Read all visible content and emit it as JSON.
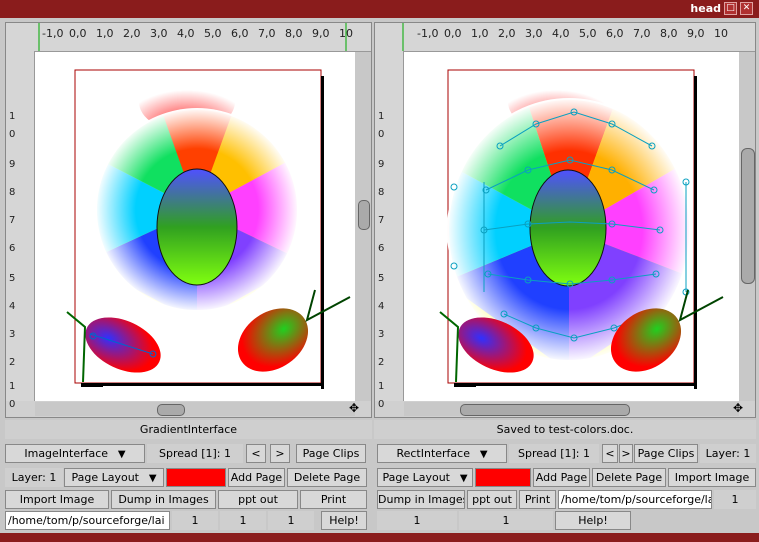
{
  "window": {
    "title": "head"
  },
  "left": {
    "ruler_top_labels": [
      "-1,0",
      "0,0",
      "1,0",
      "2,0",
      "3,0",
      "4,0",
      "5,0",
      "6,0",
      "7,0",
      "8,0",
      "9,0",
      "10"
    ],
    "ruler_left_labels": [
      "1",
      "0",
      "9",
      "8",
      "7",
      "6",
      "5",
      "4",
      "3",
      "2",
      "1",
      "0"
    ],
    "status": "GradientInterface",
    "interface_select": "ImageInterface",
    "spread": "Spread [1]: 1",
    "prev": "<",
    "next": ">",
    "page_clips": "Page Clips",
    "layer": "Layer: 1",
    "page_layout": "Page Layout",
    "add_page": "Add Page",
    "delete_page": "Delete Page",
    "import_image": "Import Image",
    "dump_images": "Dump in Images",
    "ppt_out": "ppt out",
    "print": "Print",
    "path": "/home/tom/p/sourceforge/lai",
    "num1": "1",
    "num2": "1",
    "num3": "1",
    "help": "Help!"
  },
  "right": {
    "ruler_top_labels": [
      "-1,0",
      "0,0",
      "1,0",
      "2,0",
      "3,0",
      "4,0",
      "5,0",
      "6,0",
      "7,0",
      "8,0",
      "9,0",
      "10"
    ],
    "ruler_left_labels": [
      "1",
      "0",
      "9",
      "8",
      "7",
      "6",
      "5",
      "4",
      "3",
      "2",
      "1",
      "0"
    ],
    "status": "Saved to test-colors.doc.",
    "interface_select": "RectInterface",
    "spread": "Spread [1]: 1",
    "prev": "<",
    "next": ">",
    "page_clips": "Page Clips",
    "layer": "Layer: 1",
    "page_layout": "Page Layout",
    "add_page": "Add Page",
    "delete_page": "Delete Page",
    "import_image": "Import Image",
    "dump_images": "Dump in Images",
    "ppt_out": "ppt out",
    "print": "Print",
    "path": "/home/tom/p/sourceforge/lai",
    "num1": "1",
    "num2": "1",
    "num3": "1",
    "help": "Help!"
  },
  "colors": {
    "frame": "#8a1c1c",
    "swatch": "#ff0000"
  }
}
